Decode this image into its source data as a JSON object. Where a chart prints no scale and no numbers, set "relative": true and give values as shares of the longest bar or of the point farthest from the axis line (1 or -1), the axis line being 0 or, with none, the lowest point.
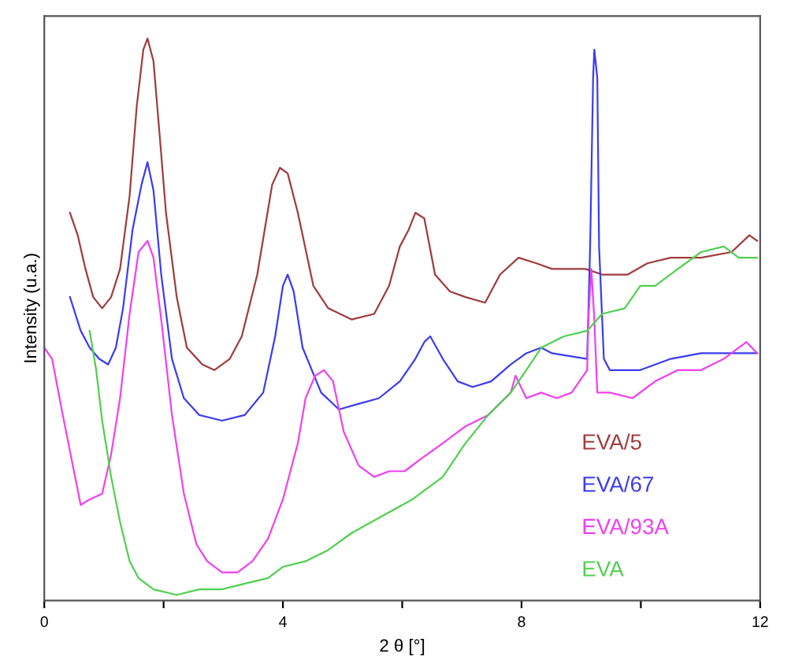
{
  "chart_data": {
    "type": "line",
    "xlabel": "2 θ [°]",
    "ylabel": "Intensity (u.a.)",
    "relative": true,
    "xlim": [
      0,
      12
    ],
    "xticks": [
      0,
      {
        "value": 2,
        "label": null
      },
      4,
      {
        "value": 6,
        "label": null
      },
      8,
      {
        "value": 10,
        "label": null
      },
      12
    ],
    "grid": false,
    "legend": "bottom right",
    "marker": "none",
    "line_style": "solid",
    "series": [
      {
        "name": "EVA/5",
        "color": "#a03c3c",
        "x": [
          0.43,
          0.56,
          0.69,
          0.82,
          0.97,
          1.12,
          1.27,
          1.43,
          1.55,
          1.66,
          1.73,
          1.83,
          1.94,
          2.04,
          2.22,
          2.39,
          2.65,
          2.85,
          3.11,
          3.31,
          3.57,
          3.82,
          3.95,
          4.08,
          4.25,
          4.51,
          4.76,
          5.15,
          5.53,
          5.78,
          5.96,
          6.11,
          6.22,
          6.37,
          6.55,
          6.8,
          7.06,
          7.39,
          7.64,
          7.95,
          8.25,
          8.51,
          9.07,
          9.35,
          9.78,
          10.11,
          10.5,
          11.01,
          11.52,
          11.82,
          11.95
        ],
        "values": [
          0.69,
          0.65,
          0.59,
          0.54,
          0.52,
          0.54,
          0.59,
          0.72,
          0.88,
          0.98,
          1.0,
          0.96,
          0.82,
          0.69,
          0.54,
          0.45,
          0.42,
          0.41,
          0.43,
          0.47,
          0.58,
          0.74,
          0.77,
          0.76,
          0.69,
          0.56,
          0.52,
          0.5,
          0.51,
          0.56,
          0.63,
          0.66,
          0.69,
          0.68,
          0.58,
          0.55,
          0.54,
          0.53,
          0.58,
          0.61,
          0.6,
          0.59,
          0.59,
          0.58,
          0.58,
          0.6,
          0.61,
          0.61,
          0.62,
          0.65,
          0.64
        ]
      },
      {
        "name": "EVA/67",
        "color": "#3c3cf0",
        "x": [
          0.43,
          0.61,
          0.76,
          0.92,
          1.07,
          1.2,
          1.32,
          1.48,
          1.63,
          1.73,
          1.83,
          1.96,
          2.14,
          2.34,
          2.6,
          2.98,
          3.36,
          3.67,
          3.87,
          4.0,
          4.08,
          4.18,
          4.33,
          4.64,
          4.94,
          5.27,
          5.61,
          5.96,
          6.22,
          6.37,
          6.47,
          6.68,
          6.93,
          7.18,
          7.49,
          7.82,
          8.08,
          8.33,
          8.51,
          9.1,
          9.15,
          9.2,
          9.22,
          9.27,
          9.3,
          9.38,
          9.48,
          9.99,
          10.5,
          11.01,
          11.52,
          11.95
        ],
        "values": [
          0.54,
          0.48,
          0.45,
          0.43,
          0.42,
          0.45,
          0.52,
          0.66,
          0.74,
          0.78,
          0.73,
          0.58,
          0.43,
          0.36,
          0.33,
          0.32,
          0.33,
          0.37,
          0.47,
          0.56,
          0.58,
          0.55,
          0.45,
          0.37,
          0.34,
          0.35,
          0.36,
          0.39,
          0.43,
          0.46,
          0.47,
          0.43,
          0.39,
          0.38,
          0.39,
          0.42,
          0.44,
          0.45,
          0.44,
          0.43,
          0.63,
          0.93,
          0.98,
          0.93,
          0.63,
          0.43,
          0.41,
          0.41,
          0.43,
          0.44,
          0.44,
          0.44
        ]
      },
      {
        "name": "EVA/93A",
        "color": "#f040f0",
        "x": [
          0,
          0.13,
          0.31,
          0.46,
          0.61,
          0.76,
          0.97,
          1.12,
          1.27,
          1.43,
          1.58,
          1.73,
          1.83,
          1.96,
          2.14,
          2.34,
          2.55,
          2.73,
          2.98,
          3.24,
          3.49,
          3.75,
          4.0,
          4.25,
          4.38,
          4.54,
          4.69,
          4.84,
          5.02,
          5.27,
          5.53,
          5.78,
          6.04,
          6.29,
          6.68,
          7.06,
          7.44,
          7.82,
          7.9,
          8.08,
          8.33,
          8.59,
          8.84,
          9.1,
          9.12,
          9.17,
          9.22,
          9.27,
          9.48,
          9.86,
          10.24,
          10.62,
          11.01,
          11.39,
          11.77,
          11.95
        ],
        "values": [
          0.45,
          0.43,
          0.33,
          0.25,
          0.17,
          0.18,
          0.19,
          0.26,
          0.36,
          0.51,
          0.62,
          0.64,
          0.61,
          0.5,
          0.33,
          0.19,
          0.1,
          0.07,
          0.05,
          0.05,
          0.07,
          0.11,
          0.18,
          0.28,
          0.36,
          0.4,
          0.41,
          0.39,
          0.3,
          0.24,
          0.22,
          0.23,
          0.23,
          0.25,
          0.28,
          0.31,
          0.33,
          0.37,
          0.4,
          0.36,
          0.37,
          0.36,
          0.37,
          0.41,
          0.5,
          0.59,
          0.5,
          0.37,
          0.37,
          0.36,
          0.39,
          0.41,
          0.41,
          0.43,
          0.46,
          0.44
        ]
      },
      {
        "name": "EVA",
        "color": "#50d050",
        "x": [
          0.76,
          0.87,
          0.97,
          1.12,
          1.27,
          1.43,
          1.58,
          1.83,
          2.22,
          2.6,
          2.98,
          3.36,
          3.75,
          4.0,
          4.38,
          4.76,
          5.15,
          5.66,
          6.17,
          6.68,
          7.06,
          7.44,
          7.82,
          8.08,
          8.33,
          8.71,
          9.1,
          9.35,
          9.73,
          9.99,
          10.24,
          10.62,
          11.01,
          11.39,
          11.64,
          11.95
        ],
        "values": [
          0.48,
          0.41,
          0.32,
          0.22,
          0.14,
          0.07,
          0.04,
          0.02,
          0.01,
          0.02,
          0.02,
          0.03,
          0.04,
          0.06,
          0.07,
          0.09,
          0.12,
          0.15,
          0.18,
          0.22,
          0.28,
          0.33,
          0.37,
          0.41,
          0.45,
          0.47,
          0.48,
          0.51,
          0.52,
          0.56,
          0.56,
          0.59,
          0.62,
          0.63,
          0.61,
          0.61
        ]
      }
    ]
  }
}
